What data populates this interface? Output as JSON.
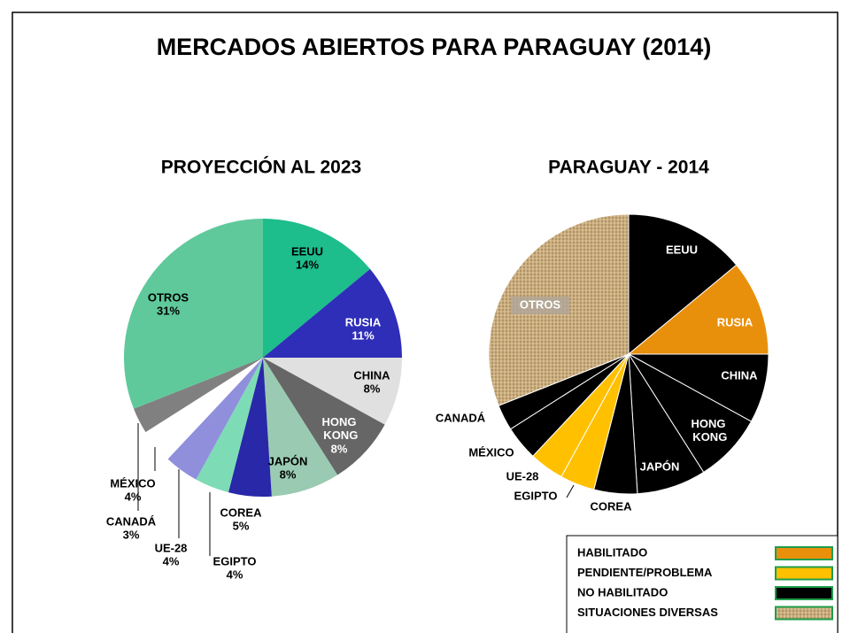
{
  "title": "MERCADOS ABIERTOS PARA PARAGUAY (2014)",
  "chart_data": [
    {
      "type": "pie",
      "title": "PROYECCIÓN AL 2023",
      "categories": [
        "EEUU",
        "RUSIA",
        "CHINA",
        "HONG KONG",
        "JAPÓN",
        "COREA",
        "EGIPTO",
        "UE-28",
        "MÉXICO",
        "CANADÁ",
        "OTROS"
      ],
      "values": [
        14,
        11,
        8,
        8,
        8,
        5,
        4,
        4,
        4,
        3,
        31
      ],
      "value_labels": [
        "14%",
        "11%",
        "8%",
        "8%",
        "8%",
        "5%",
        "4%",
        "4%",
        "4%",
        "3%",
        "31%"
      ],
      "colors": [
        "#1dbd8c",
        "#2e2eb8",
        "#e0e0e0",
        "#666666",
        "#9acbb2",
        "#2828a8",
        "#7ddcb5",
        "#8f8fdc",
        "#ffffff",
        "#808080",
        "#5fc99b"
      ]
    },
    {
      "type": "pie",
      "title": "PARAGUAY - 2014",
      "categories": [
        "EEUU",
        "RUSIA",
        "CHINA",
        "HONG KONG",
        "JAPÓN",
        "COREA",
        "EGIPTO",
        "UE-28",
        "MÉXICO",
        "CANADÁ",
        "OTROS"
      ],
      "values": [
        14,
        11,
        8,
        8,
        8,
        5,
        4,
        4,
        4,
        3,
        31
      ],
      "colors": [
        "#000000",
        "#e8900c",
        "#000000",
        "#000000",
        "#000000",
        "#000000",
        "#ffc000",
        "#ffc000",
        "#000000",
        "#000000",
        "texture"
      ],
      "legend": [
        {
          "label": "HABILITADO",
          "color": "#e8900c"
        },
        {
          "label": "PENDIENTE/PROBLEMA",
          "color": "#ffc000"
        },
        {
          "label": "NO HABILITADO",
          "color": "#000000"
        },
        {
          "label": "SITUACIONES DIVERSAS",
          "color": "texture"
        }
      ]
    }
  ]
}
